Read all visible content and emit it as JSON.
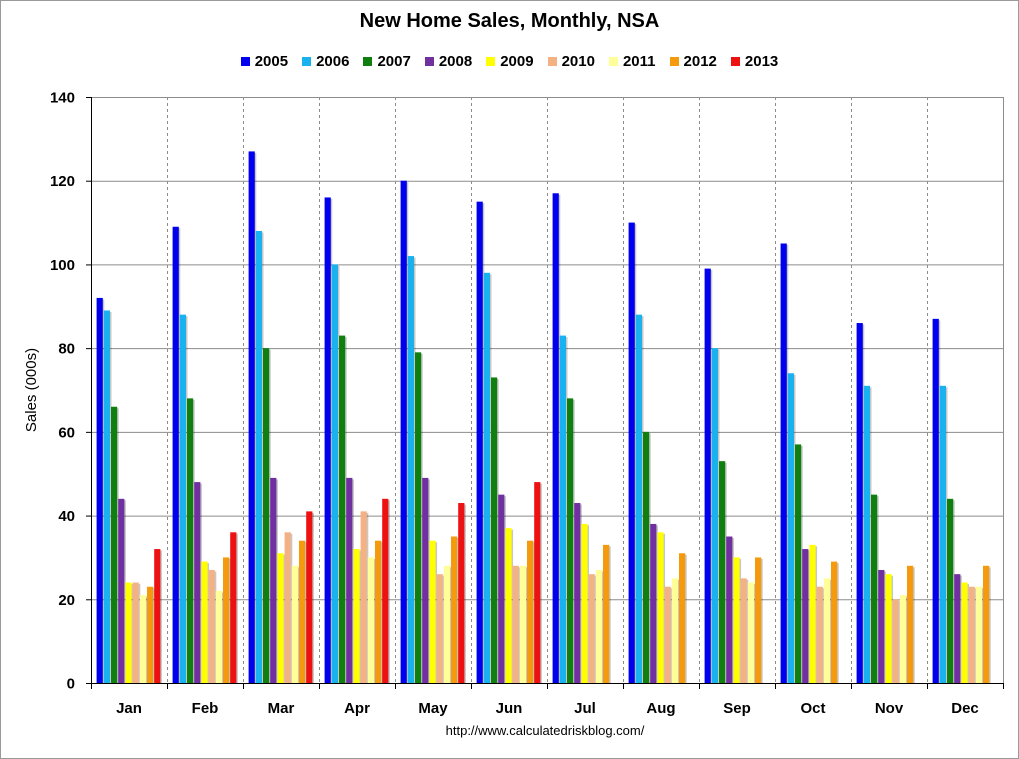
{
  "title": "New Home Sales, Monthly, NSA",
  "source": "http://www.calculatedriskblog.com/",
  "chart_data": {
    "type": "bar",
    "title": "New Home Sales, Monthly, NSA",
    "xlabel": "",
    "ylabel": "Sales (000s)",
    "ylim": [
      0,
      140
    ],
    "yticks": [
      0,
      20,
      40,
      60,
      80,
      100,
      120,
      140
    ],
    "grid": true,
    "legend_position": "top",
    "categories": [
      "Jan",
      "Feb",
      "Mar",
      "Apr",
      "May",
      "Jun",
      "Jul",
      "Aug",
      "Sep",
      "Oct",
      "Nov",
      "Dec"
    ],
    "series": [
      {
        "name": "2005",
        "color": "#0000ee",
        "values": [
          92,
          109,
          127,
          116,
          120,
          115,
          117,
          110,
          99,
          105,
          86,
          87
        ]
      },
      {
        "name": "2006",
        "color": "#1ab2ee",
        "values": [
          89,
          88,
          108,
          100,
          102,
          98,
          83,
          88,
          80,
          74,
          71,
          71
        ]
      },
      {
        "name": "2007",
        "color": "#0f7f0f",
        "values": [
          66,
          68,
          80,
          83,
          79,
          73,
          68,
          60,
          53,
          57,
          45,
          44
        ]
      },
      {
        "name": "2008",
        "color": "#7030a0",
        "values": [
          44,
          48,
          49,
          49,
          49,
          45,
          43,
          38,
          35,
          32,
          27,
          26
        ]
      },
      {
        "name": "2009",
        "color": "#ffff00",
        "values": [
          24,
          29,
          31,
          32,
          34,
          37,
          38,
          36,
          30,
          33,
          26,
          24
        ]
      },
      {
        "name": "2010",
        "color": "#f4b183",
        "values": [
          24,
          27,
          36,
          41,
          26,
          28,
          26,
          23,
          25,
          23,
          20,
          23
        ]
      },
      {
        "name": "2011",
        "color": "#ffff99",
        "values": [
          21,
          22,
          28,
          30,
          28,
          28,
          27,
          25,
          24,
          25,
          21,
          23
        ]
      },
      {
        "name": "2012",
        "color": "#f59a0c",
        "values": [
          23,
          30,
          34,
          34,
          35,
          34,
          33,
          31,
          30,
          29,
          28,
          28
        ]
      },
      {
        "name": "2013",
        "color": "#ee1111",
        "values": [
          32,
          36,
          41,
          44,
          43,
          48,
          null,
          null,
          null,
          null,
          null,
          null
        ]
      }
    ]
  }
}
